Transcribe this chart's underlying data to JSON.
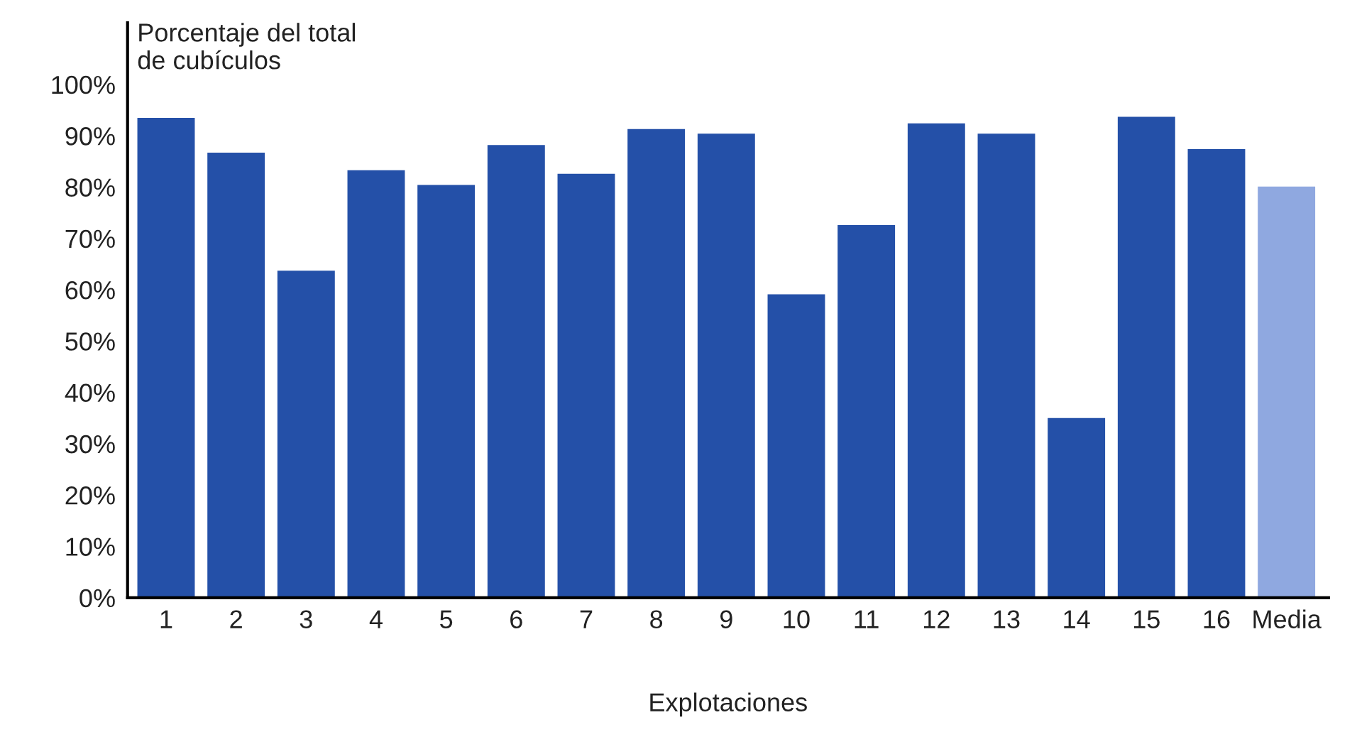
{
  "chart_data": {
    "type": "bar",
    "ylabel": "Porcentaje del total\nde cubículos",
    "xlabel": "Explotaciones",
    "categories": [
      "1",
      "2",
      "3",
      "4",
      "5",
      "6",
      "7",
      "8",
      "9",
      "10",
      "11",
      "12",
      "13",
      "14",
      "15",
      "16",
      "Media"
    ],
    "values": [
      93.5,
      86.7,
      63.7,
      83.3,
      80.4,
      88.2,
      82.6,
      91.3,
      90.4,
      59.1,
      72.6,
      92.4,
      90.4,
      35,
      93.7,
      87.4,
      80.1
    ],
    "colors": [
      "#2450a8",
      "#2450a8",
      "#2450a8",
      "#2450a8",
      "#2450a8",
      "#2450a8",
      "#2450a8",
      "#2450a8",
      "#2450a8",
      "#2450a8",
      "#2450a8",
      "#2450a8",
      "#2450a8",
      "#2450a8",
      "#2450a8",
      "#2450a8",
      "#8fa8e0"
    ],
    "ylim": [
      0,
      112
    ],
    "yticks": [
      {
        "value": 0,
        "label": "0%"
      },
      {
        "value": 10,
        "label": "10%"
      },
      {
        "value": 20,
        "label": "20%"
      },
      {
        "value": 30,
        "label": "30%"
      },
      {
        "value": 40,
        "label": "40%"
      },
      {
        "value": 50,
        "label": "50%"
      },
      {
        "value": 60,
        "label": "60%"
      },
      {
        "value": 70,
        "label": "70%"
      },
      {
        "value": 80,
        "label": "80%"
      },
      {
        "value": 90,
        "label": "90%"
      },
      {
        "value": 100,
        "label": "100%"
      }
    ],
    "grid": false,
    "legend": false
  }
}
